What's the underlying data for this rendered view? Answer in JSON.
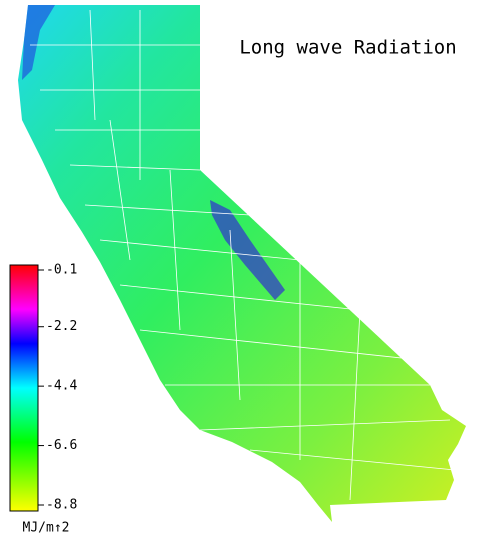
{
  "map": {
    "title": "Long wave Radiation",
    "colorbar": {
      "lim": [
        -8.8,
        -0.1
      ],
      "ticks": [
        -0.1,
        -2.2,
        -4.4,
        -6.6,
        -8.8
      ],
      "unit": "MJ/m↑2"
    }
  }
}
